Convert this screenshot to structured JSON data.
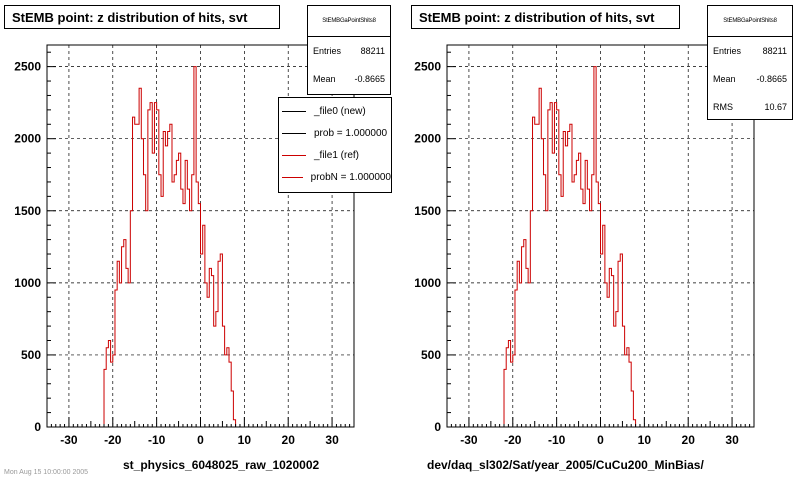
{
  "chart_data": [
    {
      "type": "histogram",
      "title": "StEMB point: z distribution of hits, svt",
      "xlabel": "st_physics_6048025_raw_1020002",
      "ylabel": "",
      "xlim": [
        -35,
        35
      ],
      "ylim": [
        0,
        2650
      ],
      "xticks": [
        -30,
        -20,
        -10,
        0,
        10,
        20,
        30
      ],
      "yticks": [
        0,
        500,
        1000,
        1500,
        2000,
        2500
      ],
      "grid": true,
      "stats": {
        "header": "StEMBGaPointShits8",
        "rows": [
          {
            "label": "Entries",
            "value": "88211"
          },
          {
            "label": "Mean",
            "value": "-0.8665"
          }
        ]
      },
      "legend": {
        "placement": "top-right",
        "entries": [
          {
            "label": "_file0 (new)",
            "color": "#000000"
          },
          {
            "label": "prob = 1.000000",
            "color": "#000000"
          },
          {
            "label": "_file1 (ref)",
            "color": "#cc0000"
          },
          {
            "label": "probN = 1.000000",
            "color": "#cc0000"
          }
        ]
      },
      "bin_start": -22,
      "bin_width": 0.5,
      "values": [
        400,
        550,
        600,
        450,
        500,
        950,
        1150,
        1000,
        1250,
        1300,
        1100,
        1000,
        1500,
        2150,
        2100,
        2100,
        2350,
        2000,
        1750,
        1500,
        2200,
        2250,
        1900,
        2250,
        2200,
        1750,
        1600,
        2050,
        1950,
        2050,
        2100,
        1700,
        1750,
        1850,
        1900,
        1650,
        1550,
        1850,
        1650,
        1500,
        1750,
        2500,
        1700,
        1550,
        1200,
        1400,
        1000,
        900,
        1100,
        1050,
        700,
        800,
        1150,
        1200,
        700,
        500,
        550,
        450,
        250,
        50
      ]
    },
    {
      "type": "histogram",
      "title": "StEMB point: z distribution of hits, svt",
      "xlabel": "dev/daq_sl302/Sat/year_2005/CuCu200_MinBias/",
      "ylabel": "",
      "xlim": [
        -35,
        35
      ],
      "ylim": [
        0,
        2650
      ],
      "xticks": [
        -30,
        -20,
        -10,
        0,
        10,
        20,
        30
      ],
      "yticks": [
        0,
        500,
        1000,
        1500,
        2000,
        2500
      ],
      "grid": true,
      "stats": {
        "header": "StEMBGaPointShits8",
        "rows": [
          {
            "label": "Entries",
            "value": "88211"
          },
          {
            "label": "Mean",
            "value": "-0.8665"
          },
          {
            "label": "RMS",
            "value": "10.67"
          }
        ]
      },
      "bin_start": -22,
      "bin_width": 0.5,
      "values": [
        400,
        550,
        600,
        450,
        500,
        950,
        1150,
        1000,
        1250,
        1300,
        1100,
        1000,
        1500,
        2150,
        2100,
        2100,
        2350,
        2000,
        1750,
        1500,
        2200,
        2250,
        1900,
        2250,
        2200,
        1750,
        1600,
        2050,
        1950,
        2050,
        2100,
        1700,
        1750,
        1850,
        1900,
        1650,
        1550,
        1850,
        1650,
        1500,
        1750,
        2500,
        1700,
        1550,
        1200,
        1400,
        1000,
        900,
        1100,
        1050,
        700,
        800,
        1150,
        1200,
        700,
        500,
        550,
        450,
        250,
        50
      ]
    }
  ],
  "colors": {
    "hist_line": "#cc0000",
    "frame": "#000000",
    "grid": "#000000"
  },
  "footer": {
    "note": "Mon Aug 15 10:00:00 2005"
  }
}
